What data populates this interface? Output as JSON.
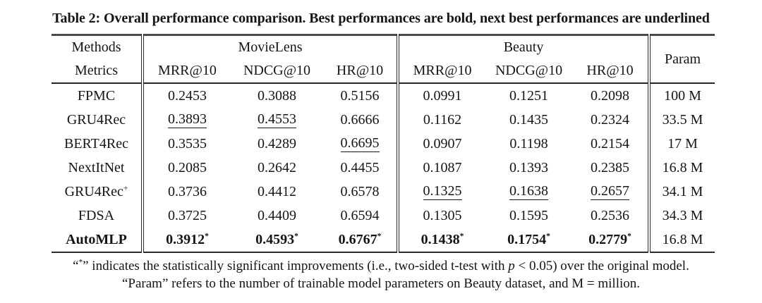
{
  "title": "Table 2: Overall performance comparison. Best performances are bold, next best performances are underlined",
  "table": {
    "star": "*",
    "header": {
      "methods": "Methods",
      "metrics": "Metrics",
      "groups": [
        {
          "label": "MovieLens",
          "metrics": [
            "MRR@10",
            "NDCG@10",
            "HR@10"
          ]
        },
        {
          "label": "Beauty",
          "metrics": [
            "MRR@10",
            "NDCG@10",
            "HR@10"
          ]
        }
      ],
      "param": "Param"
    },
    "rows": [
      {
        "method": "FPMC",
        "values": [
          {
            "v": "0.2453"
          },
          {
            "v": "0.3088"
          },
          {
            "v": "0.5156"
          },
          {
            "v": "0.0991"
          },
          {
            "v": "0.1251"
          },
          {
            "v": "0.2098"
          }
        ],
        "param": "100 M"
      },
      {
        "method": "GRU4Rec",
        "values": [
          {
            "v": "0.3893",
            "u": true
          },
          {
            "v": "0.4553",
            "u": true
          },
          {
            "v": "0.6666"
          },
          {
            "v": "0.1162"
          },
          {
            "v": "0.1435"
          },
          {
            "v": "0.2324"
          }
        ],
        "param": "33.5 M"
      },
      {
        "method": "BERT4Rec",
        "values": [
          {
            "v": "0.3535"
          },
          {
            "v": "0.4289"
          },
          {
            "v": "0.6695",
            "u": true
          },
          {
            "v": "0.0907"
          },
          {
            "v": "0.1198"
          },
          {
            "v": "0.2154"
          }
        ],
        "param": "17 M"
      },
      {
        "method": "NextItNet",
        "values": [
          {
            "v": "0.2085"
          },
          {
            "v": "0.2642"
          },
          {
            "v": "0.4455"
          },
          {
            "v": "0.1087"
          },
          {
            "v": "0.1393"
          },
          {
            "v": "0.2385"
          }
        ],
        "param": "16.8 M"
      },
      {
        "method": "GRU4Rec",
        "method_sup": "+",
        "values": [
          {
            "v": "0.3736"
          },
          {
            "v": "0.4412"
          },
          {
            "v": "0.6578"
          },
          {
            "v": "0.1325",
            "u": true
          },
          {
            "v": "0.1638",
            "u": true
          },
          {
            "v": "0.2657",
            "u": true
          }
        ],
        "param": "34.1 M"
      },
      {
        "method": "FDSA",
        "values": [
          {
            "v": "0.3725"
          },
          {
            "v": "0.4409"
          },
          {
            "v": "0.6594"
          },
          {
            "v": "0.1305"
          },
          {
            "v": "0.1595"
          },
          {
            "v": "0.2536"
          }
        ],
        "param": "34.3 M"
      },
      {
        "method": "AutoMLP",
        "bold": true,
        "values": [
          {
            "v": "0.3912",
            "b": true,
            "s": true
          },
          {
            "v": "0.4593",
            "b": true,
            "s": true
          },
          {
            "v": "0.6767",
            "b": true,
            "s": true
          },
          {
            "v": "0.1438",
            "b": true,
            "s": true
          },
          {
            "v": "0.1754",
            "b": true,
            "s": true
          },
          {
            "v": "0.2779",
            "b": true,
            "s": true
          }
        ],
        "param": "16.8 M"
      }
    ]
  },
  "footnotes": [
    {
      "segments": [
        {
          "t": "“"
        },
        {
          "t": "*",
          "sup": true
        },
        {
          "t": "” indicates the statistically significant improvements (i.e., two-sided t-test with "
        },
        {
          "t": "p",
          "i": true
        },
        {
          "t": " < 0.05) over the original model."
        }
      ]
    },
    {
      "segments": [
        {
          "t": "“Param” refers to the number of trainable model parameters on Beauty dataset, and M = million."
        }
      ]
    }
  ]
}
